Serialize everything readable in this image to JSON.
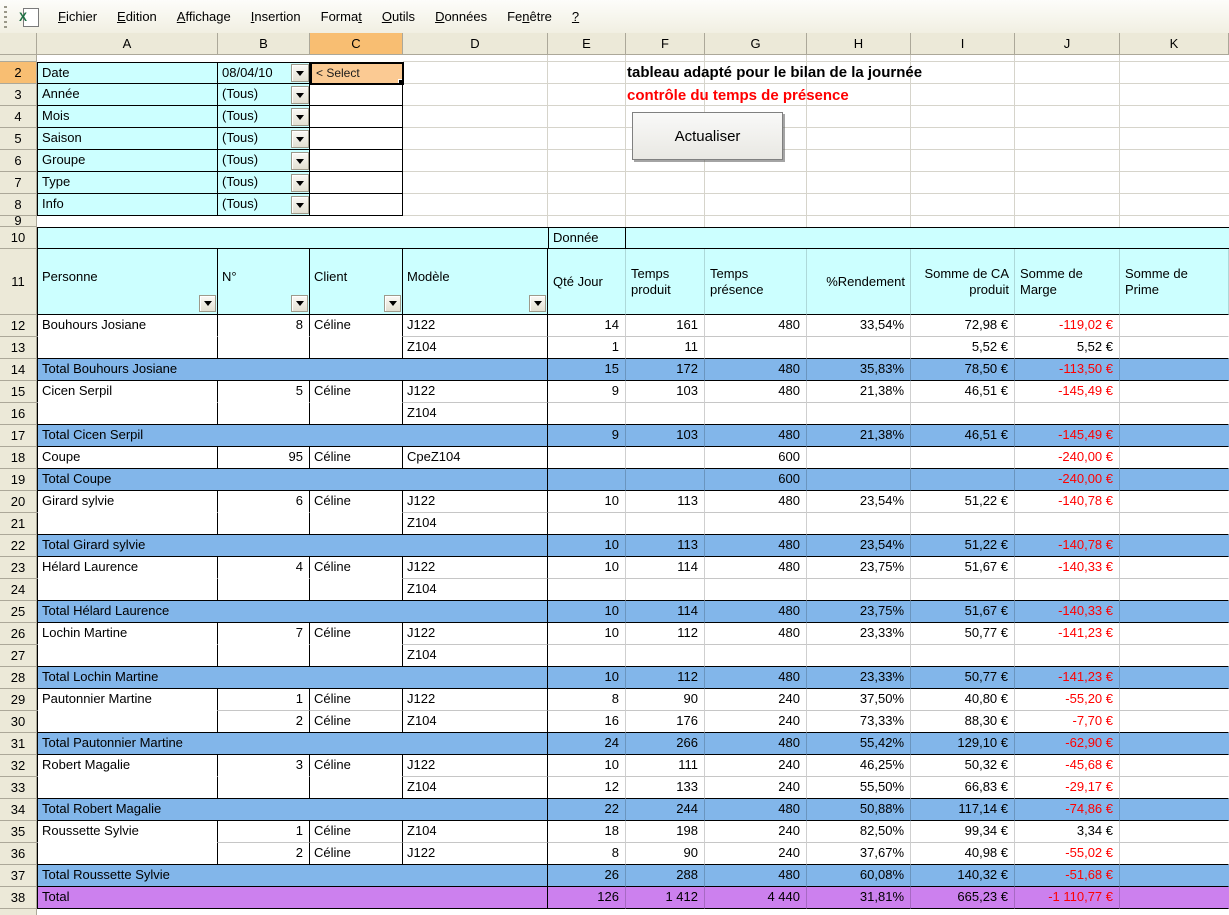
{
  "ui": {
    "active_cell": {
      "column": "C",
      "row": 2
    }
  },
  "menu": {
    "items": [
      {
        "name": "fichier",
        "label": "Fichier",
        "accel_index": 0
      },
      {
        "name": "edition",
        "label": "Edition",
        "accel_index": 0
      },
      {
        "name": "affichage",
        "label": "Affichage",
        "accel_index": 0
      },
      {
        "name": "insertion",
        "label": "Insertion",
        "accel_index": 0
      },
      {
        "name": "format",
        "label": "Format",
        "accel_index": 5
      },
      {
        "name": "outils",
        "label": "Outils",
        "accel_index": 0
      },
      {
        "name": "donnees",
        "label": "Données",
        "accel_index": 0
      },
      {
        "name": "fenetre",
        "label": "Fenêtre",
        "accel_index": 2
      },
      {
        "name": "aide",
        "label": "?",
        "accel_index": 0
      }
    ]
  },
  "grid": {
    "column_letters": [
      "A",
      "B",
      "C",
      "D",
      "E",
      "F",
      "G",
      "H",
      "I",
      "J",
      "K"
    ],
    "row_numbers": [
      2,
      3,
      4,
      5,
      6,
      7,
      8,
      9,
      10,
      11,
      12,
      13,
      14,
      15,
      16,
      17,
      18,
      19,
      20,
      21,
      22,
      23,
      24,
      25,
      26,
      27,
      28,
      29,
      30,
      31,
      32,
      33,
      34,
      35,
      36,
      37,
      38
    ],
    "collapsed_rows": [
      1,
      9
    ]
  },
  "filters": {
    "rows": [
      {
        "row": 2,
        "name": "date",
        "label": "Date",
        "value": "08/04/10",
        "note": "< Select"
      },
      {
        "row": 3,
        "name": "annee",
        "label": "Année",
        "value": "(Tous)"
      },
      {
        "row": 4,
        "name": "mois",
        "label": "Mois",
        "value": "(Tous)"
      },
      {
        "row": 5,
        "name": "saison",
        "label": "Saison",
        "value": "(Tous)"
      },
      {
        "row": 6,
        "name": "groupe",
        "label": "Groupe",
        "value": "(Tous)"
      },
      {
        "row": 7,
        "name": "type",
        "label": "Type",
        "value": "(Tous)"
      },
      {
        "row": 8,
        "name": "info",
        "label": "Info",
        "value": "(Tous)"
      }
    ]
  },
  "titles": {
    "line1": "tableau adapté pour le bilan de la journée",
    "line2": "contrôle du temps de présence"
  },
  "toolbar": {
    "refresh_label": "Actualiser"
  },
  "pivot": {
    "data_field_label": "Donnée",
    "headers": {
      "a": "Personne",
      "b": "N°",
      "c": "Client",
      "d": "Modèle",
      "e": "Qté Jour",
      "f": "Temps produit",
      "g": "Temps présence",
      "h": "%Rendement",
      "i": "Somme de CA produit",
      "j": "Somme de Marge",
      "k": "Somme de Prime"
    },
    "rows": [
      {
        "n": 12,
        "type": "detail",
        "merge_below": "ABC",
        "cells": {
          "a": "Bouhours Josiane",
          "b": "8",
          "c": "Céline",
          "d": "J122",
          "e": "14",
          "f": "161",
          "g": "480",
          "h": "33,54%",
          "i": "72,98 €",
          "j": "-119,02 €"
        }
      },
      {
        "n": 13,
        "type": "detail",
        "cells": {
          "d": "Z104",
          "e": "1",
          "f": "11",
          "i": "5,52 €",
          "j": "5,52 €"
        }
      },
      {
        "n": 14,
        "type": "total",
        "cells": {
          "a": "Total Bouhours Josiane",
          "e": "15",
          "f": "172",
          "g": "480",
          "h": "35,83%",
          "i": "78,50 €",
          "j": "-113,50 €"
        }
      },
      {
        "n": 15,
        "type": "detail",
        "merge_below": "ABC",
        "cells": {
          "a": "Cicen Serpil",
          "b": "5",
          "c": "Céline",
          "d": "J122",
          "e": "9",
          "f": "103",
          "g": "480",
          "h": "21,38%",
          "i": "46,51 €",
          "j": "-145,49 €"
        }
      },
      {
        "n": 16,
        "type": "detail",
        "cells": {
          "d": "Z104"
        }
      },
      {
        "n": 17,
        "type": "total",
        "cells": {
          "a": "Total Cicen Serpil",
          "e": "9",
          "f": "103",
          "g": "480",
          "h": "21,38%",
          "i": "46,51 €",
          "j": "-145,49 €"
        }
      },
      {
        "n": 18,
        "type": "detail",
        "cells": {
          "a": "Coupe",
          "b": "95",
          "c": "Céline",
          "d": "CpeZ104",
          "g": "600",
          "j": "-240,00 €"
        }
      },
      {
        "n": 19,
        "type": "total",
        "cells": {
          "a": "Total Coupe",
          "g": "600",
          "j": "-240,00 €"
        }
      },
      {
        "n": 20,
        "type": "detail",
        "merge_below": "ABC",
        "cells": {
          "a": "Girard sylvie",
          "b": "6",
          "c": "Céline",
          "d": "J122",
          "e": "10",
          "f": "113",
          "g": "480",
          "h": "23,54%",
          "i": "51,22 €",
          "j": "-140,78 €"
        }
      },
      {
        "n": 21,
        "type": "detail",
        "cells": {
          "d": "Z104"
        }
      },
      {
        "n": 22,
        "type": "total",
        "cells": {
          "a": "Total Girard sylvie",
          "e": "10",
          "f": "113",
          "g": "480",
          "h": "23,54%",
          "i": "51,22 €",
          "j": "-140,78 €"
        }
      },
      {
        "n": 23,
        "type": "detail",
        "merge_below": "ABC",
        "cells": {
          "a": "Hélard Laurence",
          "b": "4",
          "c": "Céline",
          "d": "J122",
          "e": "10",
          "f": "114",
          "g": "480",
          "h": "23,75%",
          "i": "51,67 €",
          "j": "-140,33 €"
        }
      },
      {
        "n": 24,
        "type": "detail",
        "cells": {
          "d": "Z104"
        }
      },
      {
        "n": 25,
        "type": "total",
        "cells": {
          "a": "Total Hélard Laurence",
          "e": "10",
          "f": "114",
          "g": "480",
          "h": "23,75%",
          "i": "51,67 €",
          "j": "-140,33 €"
        }
      },
      {
        "n": 26,
        "type": "detail",
        "merge_below": "ABC",
        "cells": {
          "a": "Lochin Martine",
          "b": "7",
          "c": "Céline",
          "d": "J122",
          "e": "10",
          "f": "112",
          "g": "480",
          "h": "23,33%",
          "i": "50,77 €",
          "j": "-141,23 €"
        }
      },
      {
        "n": 27,
        "type": "detail",
        "cells": {
          "d": "Z104"
        }
      },
      {
        "n": 28,
        "type": "total",
        "cells": {
          "a": "Total Lochin Martine",
          "e": "10",
          "f": "112",
          "g": "480",
          "h": "23,33%",
          "i": "50,77 €",
          "j": "-141,23 €"
        }
      },
      {
        "n": 29,
        "type": "detail",
        "merge_below": "A",
        "cells": {
          "a": "Pautonnier Martine",
          "b": "1",
          "c": "Céline",
          "d": "J122",
          "e": "8",
          "f": "90",
          "g": "240",
          "h": "37,50%",
          "i": "40,80 €",
          "j": "-55,20 €"
        }
      },
      {
        "n": 30,
        "type": "detail",
        "cells": {
          "b": "2",
          "c": "Céline",
          "d": "Z104",
          "e": "16",
          "f": "176",
          "g": "240",
          "h": "73,33%",
          "i": "88,30 €",
          "j": "-7,70 €"
        }
      },
      {
        "n": 31,
        "type": "total",
        "cells": {
          "a": "Total Pautonnier Martine",
          "e": "24",
          "f": "266",
          "g": "480",
          "h": "55,42%",
          "i": "129,10 €",
          "j": "-62,90 €"
        }
      },
      {
        "n": 32,
        "type": "detail",
        "merge_below": "ABC",
        "cells": {
          "a": "Robert Magalie",
          "b": "3",
          "c": "Céline",
          "d": "J122",
          "e": "10",
          "f": "111",
          "g": "240",
          "h": "46,25%",
          "i": "50,32 €",
          "j": "-45,68 €"
        }
      },
      {
        "n": 33,
        "type": "detail",
        "cells": {
          "d": "Z104",
          "e": "12",
          "f": "133",
          "g": "240",
          "h": "55,50%",
          "i": "66,83 €",
          "j": "-29,17 €"
        }
      },
      {
        "n": 34,
        "type": "total",
        "cells": {
          "a": "Total Robert Magalie",
          "e": "22",
          "f": "244",
          "g": "480",
          "h": "50,88%",
          "i": "117,14 €",
          "j": "-74,86 €"
        }
      },
      {
        "n": 35,
        "type": "detail",
        "merge_below": "A",
        "cells": {
          "a": "Roussette Sylvie",
          "b": "1",
          "c": "Céline",
          "d": "Z104",
          "e": "18",
          "f": "198",
          "g": "240",
          "h": "82,50%",
          "i": "99,34 €",
          "j": "3,34 €"
        }
      },
      {
        "n": 36,
        "type": "detail",
        "cells": {
          "b": "2",
          "c": "Céline",
          "d": "J122",
          "e": "8",
          "f": "90",
          "g": "240",
          "h": "37,67%",
          "i": "40,98 €",
          "j": "-55,02 €"
        }
      },
      {
        "n": 37,
        "type": "total",
        "cells": {
          "a": "Total Roussette Sylvie",
          "e": "26",
          "f": "288",
          "g": "480",
          "h": "60,08%",
          "i": "140,32 €",
          "j": "-51,68 €"
        }
      },
      {
        "n": 38,
        "type": "grand",
        "cells": {
          "a": "Total",
          "e": "126",
          "f": "1 412",
          "g": "4 440",
          "h": "31,81%",
          "i": "665,23 €",
          "j": "-1 110,77 €"
        }
      }
    ]
  },
  "colors": {
    "filter_fill": "#CCFFFF",
    "header_fill": "#CCFFFF",
    "total_fill": "#82B6EA",
    "grand_total_fill": "#CC80EE",
    "selected_header_fill": "#F8BE72",
    "active_cell_fill": "#FBCA93",
    "negative_text": "#FF0000"
  }
}
